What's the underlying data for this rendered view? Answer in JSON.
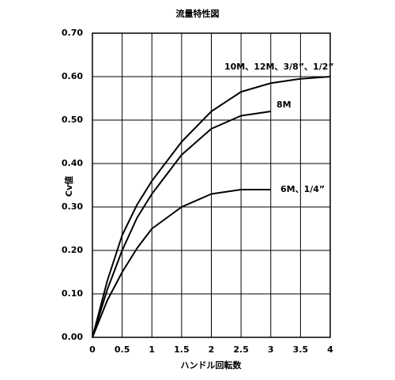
{
  "chart_data": {
    "type": "line",
    "title": "流量特性図",
    "x_label": "ハンドル回転数",
    "y_label": "Cv値",
    "x": [
      0,
      0.25,
      0.5,
      0.75,
      1,
      1.5,
      2,
      2.5,
      3,
      3.5,
      4
    ],
    "series": [
      {
        "name": "10M、12M、3/8”、1/2”",
        "color": "#000000",
        "values": [
          0,
          0.13,
          0.235,
          0.305,
          0.36,
          0.45,
          0.52,
          0.565,
          0.585,
          0.595,
          0.6
        ]
      },
      {
        "name": "8M",
        "color": "#000000",
        "values": [
          0,
          0.11,
          0.2,
          0.275,
          0.33,
          0.42,
          0.48,
          0.51,
          0.52,
          null,
          null
        ]
      },
      {
        "name": "6M、1/4”",
        "color": "#000000",
        "values": [
          0,
          0.085,
          0.15,
          0.205,
          0.25,
          0.3,
          0.33,
          0.34,
          0.34,
          null,
          null
        ]
      }
    ],
    "xlim": [
      0,
      4
    ],
    "xticks": [
      0,
      0.5,
      1,
      1.5,
      2,
      2.5,
      3,
      3.5,
      4
    ],
    "ylim": [
      0,
      0.7
    ],
    "yticks": [
      {
        "value": 0,
        "label": "0.00"
      },
      {
        "value": 0.1,
        "label": "0.10"
      },
      {
        "value": 0.2,
        "label": "0.20"
      },
      {
        "value": 0.3,
        "label": "0.30"
      },
      {
        "value": 0.4,
        "label": "0.40"
      },
      {
        "value": 0.5,
        "label": "0.50"
      },
      {
        "value": 0.6,
        "label": "0.60"
      },
      {
        "value": 0.7,
        "label": "0.70"
      }
    ],
    "grid": true
  }
}
